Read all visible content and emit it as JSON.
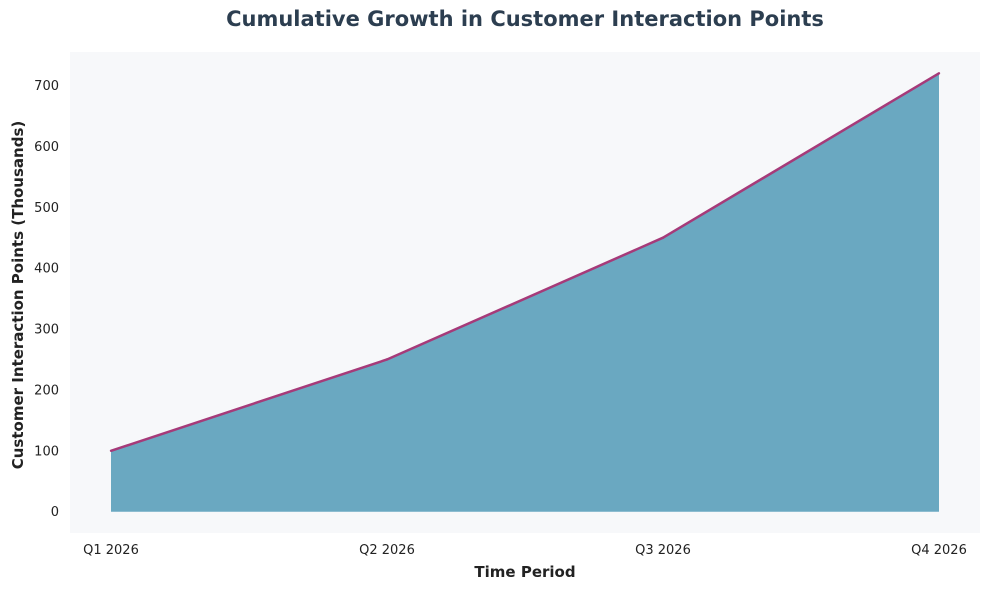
{
  "chart_data": {
    "type": "area",
    "title": "Cumulative Growth in Customer Interaction Points",
    "xlabel": "Time Period",
    "ylabel": "Customer Interaction Points (Thousands)",
    "categories": [
      "Q1 2026",
      "Q2 2026",
      "Q3 2026",
      "Q4 2026"
    ],
    "series": [
      {
        "name": "Customer Interaction Points",
        "values": [
          100,
          250,
          450,
          720
        ]
      }
    ],
    "ylim": [
      -35,
      755
    ],
    "yticks": [
      0,
      100,
      200,
      300,
      400,
      500,
      600,
      700
    ],
    "ytick_labels": [
      "0",
      "100",
      "200",
      "300",
      "400",
      "500",
      "600",
      "700"
    ],
    "grid": false,
    "legend": "none",
    "colors": {
      "plot_background": "#f7f8fa",
      "area_fill": "#6aa8c1",
      "line": "#a63a79",
      "title": "#2c3e50",
      "text": "#222222"
    }
  }
}
